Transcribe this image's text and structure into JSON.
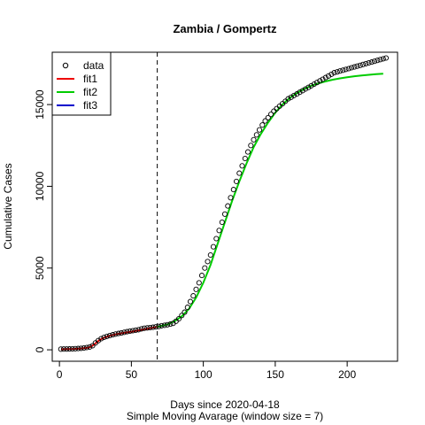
{
  "chart_data": {
    "type": "scatter",
    "title": "Zambia / Gompertz",
    "xlabel": "Days since 2020-04-18",
    "xlabel2": "Simple Moving Avarage (window size = 7)",
    "ylabel": "Cumulative Cases",
    "xlim": [
      -5,
      235
    ],
    "ylim": [
      -700,
      18200
    ],
    "x_ticks": [
      0,
      50,
      100,
      150,
      200
    ],
    "y_ticks": [
      0,
      5000,
      10000,
      15000
    ],
    "x_tick_labels": [
      "0",
      "50",
      "100",
      "150",
      "200"
    ],
    "y_tick_labels": [
      "0",
      "5000",
      "10000",
      "15000"
    ],
    "vline_x": 68,
    "legend": {
      "position": "top-left",
      "entries": [
        {
          "label": "data",
          "kind": "point",
          "color": "#000000"
        },
        {
          "label": "fit1",
          "kind": "line",
          "color": "#ee0000"
        },
        {
          "label": "fit2",
          "kind": "line",
          "color": "#00cc00"
        },
        {
          "label": "fit3",
          "kind": "line",
          "color": "#0000cc"
        }
      ]
    },
    "data_points": {
      "x": [
        1,
        3,
        5,
        7,
        9,
        11,
        13,
        15,
        17,
        19,
        21,
        23,
        25,
        27,
        29,
        31,
        33,
        35,
        37,
        39,
        41,
        43,
        45,
        47,
        49,
        51,
        53,
        55,
        57,
        59,
        61,
        63,
        65,
        67,
        69,
        71,
        73,
        75,
        77,
        79,
        81,
        83,
        85,
        87,
        89,
        91,
        93,
        95,
        97,
        99,
        101,
        103,
        105,
        107,
        109,
        111,
        113,
        115,
        117,
        119,
        121,
        123,
        125,
        127,
        129,
        131,
        133,
        135,
        137,
        139,
        141,
        143,
        145,
        147,
        149,
        151,
        153,
        155,
        157,
        159,
        161,
        163,
        165,
        167,
        169,
        171,
        173,
        175,
        177,
        179,
        181,
        183,
        185,
        187,
        189,
        191,
        193,
        195,
        197,
        199,
        201,
        203,
        205,
        207,
        209,
        211,
        213,
        215,
        217,
        219,
        221,
        223,
        225,
        227
      ],
      "y": [
        40,
        45,
        50,
        55,
        60,
        70,
        80,
        90,
        110,
        140,
        170,
        250,
        420,
        560,
        680,
        760,
        820,
        870,
        920,
        960,
        1000,
        1030,
        1070,
        1110,
        1140,
        1170,
        1200,
        1230,
        1280,
        1320,
        1340,
        1360,
        1380,
        1400,
        1430,
        1470,
        1500,
        1530,
        1570,
        1620,
        1750,
        1900,
        2100,
        2300,
        2600,
        2950,
        3300,
        3700,
        4100,
        4550,
        5000,
        5400,
        5800,
        6300,
        6800,
        7300,
        7800,
        8300,
        8800,
        9300,
        9800,
        10300,
        10800,
        11250,
        11700,
        12100,
        12500,
        12850,
        13150,
        13450,
        13750,
        14000,
        14200,
        14400,
        14600,
        14750,
        14900,
        15050,
        15200,
        15350,
        15450,
        15550,
        15650,
        15750,
        15850,
        15950,
        16050,
        16150,
        16250,
        16350,
        16450,
        16550,
        16650,
        16750,
        16850,
        16950,
        17000,
        17050,
        17100,
        17150,
        17200,
        17250,
        17300,
        17350,
        17400,
        17450,
        17500,
        17550,
        17600,
        17650,
        17700,
        17750,
        17800,
        17850
      ]
    },
    "series": [
      {
        "name": "fit1",
        "color": "#ee0000",
        "x": [
          1,
          5,
          10,
          15,
          20,
          22,
          24,
          26,
          28,
          30,
          35,
          40,
          45,
          50,
          55,
          60,
          65,
          68
        ],
        "y": [
          30,
          40,
          55,
          80,
          130,
          200,
          320,
          470,
          600,
          700,
          860,
          960,
          1040,
          1110,
          1190,
          1270,
          1350,
          1400
        ]
      },
      {
        "name": "fit2",
        "color": "#00cc00",
        "x": [
          68,
          75,
          80,
          85,
          90,
          95,
          100,
          105,
          110,
          115,
          120,
          125,
          130,
          135,
          140,
          145,
          150,
          155,
          160,
          165,
          170,
          175,
          180,
          185,
          190,
          195,
          200,
          205,
          210,
          215,
          220,
          225
        ],
        "y": [
          1400,
          1550,
          1750,
          2050,
          2500,
          3200,
          4100,
          5200,
          6500,
          7800,
          9100,
          10300,
          11400,
          12400,
          13200,
          13900,
          14500,
          15000,
          15400,
          15700,
          15950,
          16150,
          16300,
          16420,
          16520,
          16600,
          16670,
          16730,
          16780,
          16820,
          16860,
          16890
        ]
      }
    ]
  }
}
